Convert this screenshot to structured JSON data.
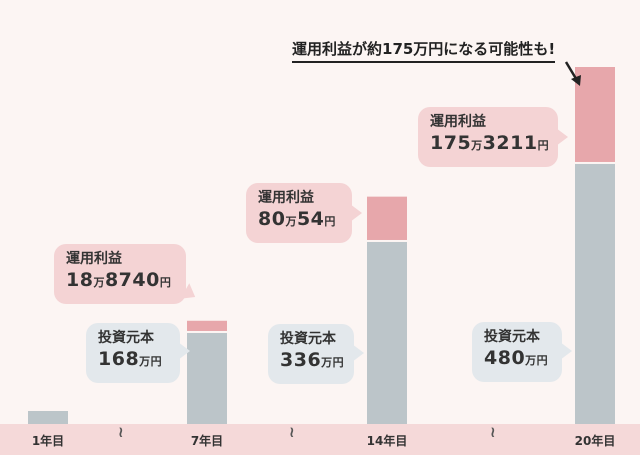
{
  "headline": "運用利益が約175万円になる可能性も!",
  "chart_data": {
    "type": "bar",
    "stacked": true,
    "categories": [
      "1年目",
      "7年目",
      "14年目",
      "20年目"
    ],
    "series": [
      {
        "name": "投資元本",
        "values": [
          24,
          168,
          336,
          480
        ],
        "color": "#bcc5c9"
      },
      {
        "name": "運用利益",
        "values": [
          0,
          18.874,
          80.0054,
          175.3211
        ],
        "color": "#e7a7ab"
      }
    ],
    "callouts": [
      {
        "label": "運用利益",
        "value_a": "18",
        "unit_a": "万",
        "value_b": "8740",
        "unit_b": "円"
      },
      {
        "label": "投資元本",
        "value_a": "168",
        "unit_a": "万円",
        "value_b": "",
        "unit_b": ""
      },
      {
        "label": "運用利益",
        "value_a": "80",
        "unit_a": "万",
        "value_b": "54",
        "unit_b": "円"
      },
      {
        "label": "投資元本",
        "value_a": "336",
        "unit_a": "万円",
        "value_b": "",
        "unit_b": ""
      },
      {
        "label": "運用利益",
        "value_a": "175",
        "unit_a": "万",
        "value_b": "3211",
        "unit_b": "円"
      },
      {
        "label": "投資元本",
        "value_a": "480",
        "unit_a": "万円",
        "value_b": "",
        "unit_b": ""
      }
    ],
    "break_mark": "≀",
    "colors": {
      "background": "#fcf5f3",
      "baseline_band": "#f5d9d9",
      "principal": "#bcc5c9",
      "profit": "#e7a7ab",
      "profit_callout": "#f4d3d4",
      "principal_callout": "#e3e8ec"
    }
  }
}
